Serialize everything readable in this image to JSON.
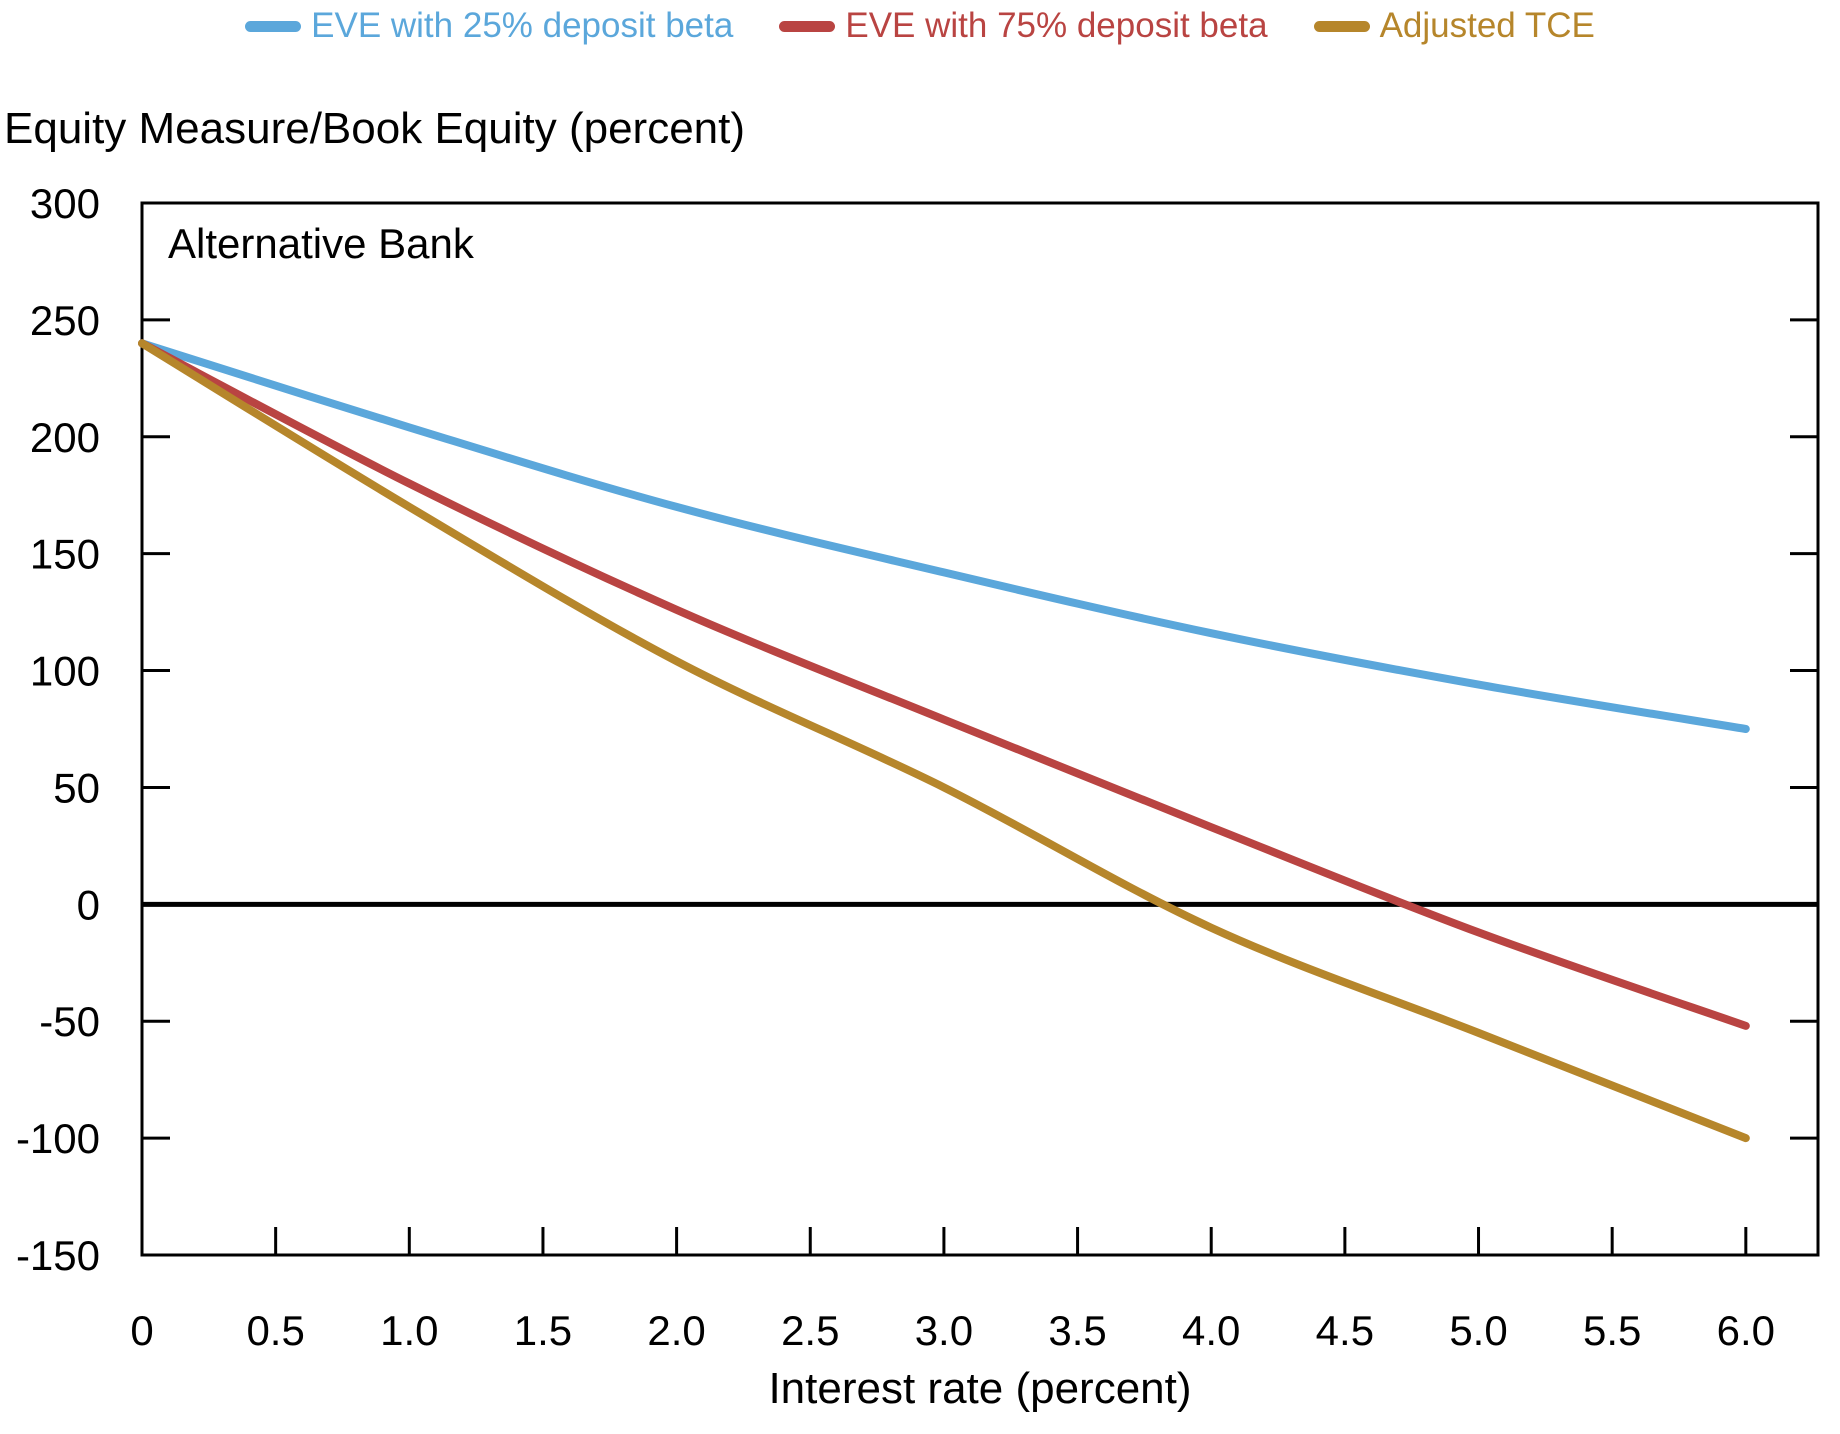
{
  "chart_data": {
    "type": "line",
    "title": "Equity Measure/Book Equity (percent)",
    "annotation": "Alternative Bank",
    "xlabel": "Interest rate (percent)",
    "ylabel": "Equity Measure/Book Equity (percent)",
    "x": [
      0,
      1,
      2,
      3,
      4,
      5,
      6
    ],
    "series": [
      {
        "name": "EVE with 25% deposit beta",
        "color": "#5BA7DB",
        "values": [
          240,
          204,
          170,
          142,
          116,
          94,
          75
        ]
      },
      {
        "name": "EVE with 75% deposit beta",
        "color": "#B94442",
        "values": [
          240,
          180,
          126,
          79,
          33,
          -12,
          -52
        ]
      },
      {
        "name": "Adjusted TCE",
        "color": "#B6862B",
        "values": [
          240,
          170,
          104,
          50,
          -10,
          -55,
          -100
        ]
      }
    ],
    "xlim": [
      0,
      6.27
    ],
    "ylim": [
      -150,
      300
    ],
    "x_ticks": [
      0,
      0.5,
      1,
      1.5,
      2,
      2.5,
      3,
      3.5,
      4,
      4.5,
      5,
      5.5,
      6
    ],
    "x_tick_labels": [
      "0",
      "0.5",
      "1.0",
      "1.5",
      "2.0",
      "2.5",
      "3.0",
      "3.5",
      "4.0",
      "4.5",
      "5.0",
      "5.5",
      "6.0"
    ],
    "y_ticks": [
      300,
      250,
      200,
      150,
      100,
      50,
      0,
      -50,
      -100,
      -150
    ],
    "y_tick_labels": [
      "300",
      "250",
      "200",
      "150",
      "100",
      "50",
      "0",
      "-50",
      "-100",
      "-150"
    ],
    "zero_line": true,
    "grid": false,
    "legend_position": "top",
    "axis_color": "#000000",
    "background_color": "#ffffff"
  }
}
